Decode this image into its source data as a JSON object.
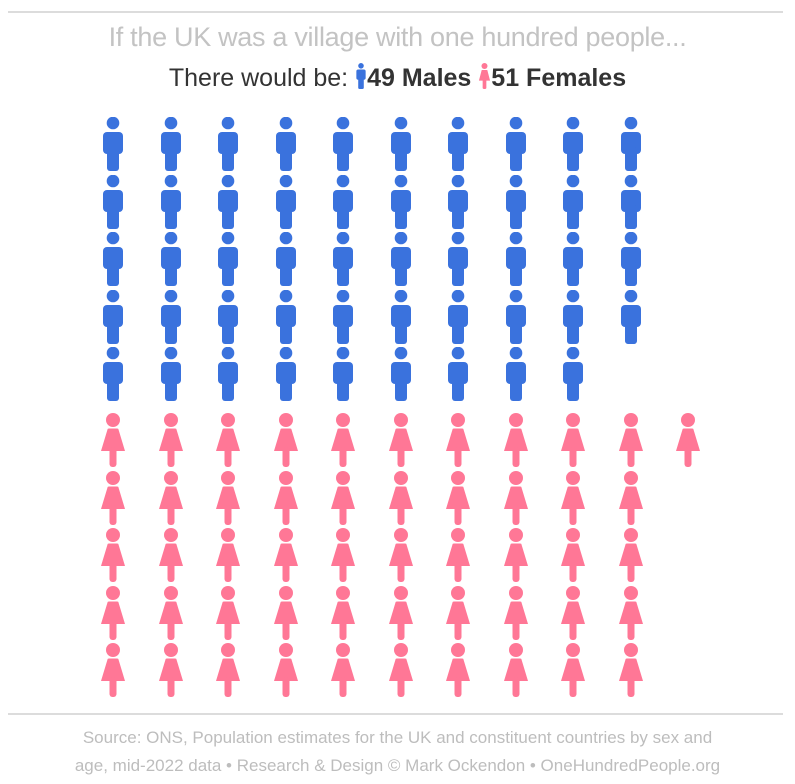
{
  "header": {
    "title": "If the UK was a village with one hundred people...",
    "subtitle_prefix": "There would be:",
    "males_label": "49 Males",
    "females_label": "51 Females"
  },
  "colors": {
    "male": "#3a72dd",
    "female": "#ff7796",
    "title": "#c3c3c3",
    "subtitle": "#333333",
    "footer": "#bdbdbd"
  },
  "footer": {
    "line1": "Source: ONS, Population estimates for the UK and constituent countries by sex and",
    "line2": "age, mid-2022 data • Research & Design © Mark Ockendon • OneHundredPeople.org"
  },
  "chart_data": {
    "type": "pictogram",
    "title": "If the UK was a village with one hundred people...",
    "subtitle": "There would be: 49 Males 51 Females",
    "total": 100,
    "categories": [
      "Males",
      "Females"
    ],
    "values": [
      49,
      51
    ],
    "colors": [
      "#3a72dd",
      "#ff7796"
    ],
    "layout": {
      "males_rows": [
        10,
        10,
        10,
        10,
        9
      ],
      "females_rows": [
        11,
        10,
        10,
        10,
        10
      ]
    },
    "source": "ONS, Population estimates for the UK and constituent countries by sex and age, mid-2022 data"
  }
}
